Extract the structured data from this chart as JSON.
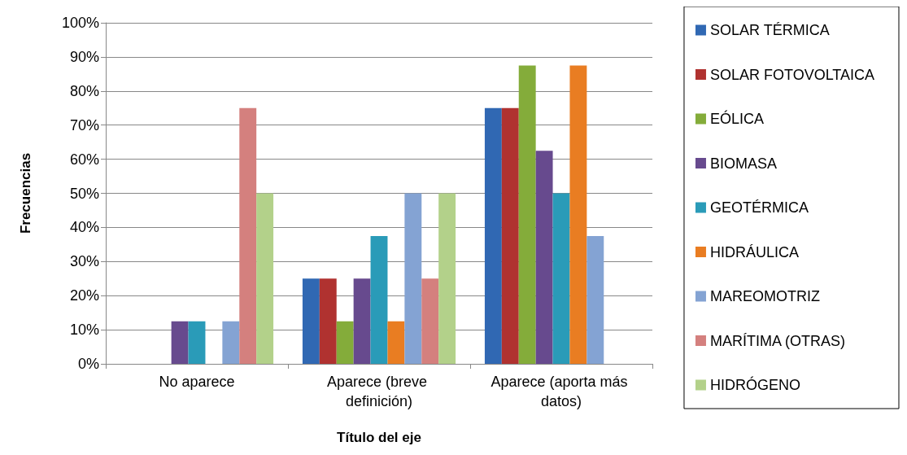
{
  "chart_data": {
    "type": "bar",
    "xlabel": "Título del eje",
    "ylabel": "Frecuencias",
    "categories": [
      "No aparece",
      "Aparece (breve definición)",
      "Aparece (aporta más datos)"
    ],
    "series": [
      {
        "name": "SOLAR TÉRMICA",
        "color": "#3068b3",
        "values": [
          0,
          25,
          75
        ]
      },
      {
        "name": "SOLAR FOTOVOLTAICA",
        "color": "#b03230",
        "values": [
          0,
          25,
          75
        ]
      },
      {
        "name": "EÓLICA",
        "color": "#84ac3a",
        "values": [
          0,
          12.5,
          87.5
        ]
      },
      {
        "name": "BIOMASA",
        "color": "#674a8e",
        "values": [
          12.5,
          25,
          62.5
        ]
      },
      {
        "name": "GEOTÉRMICA",
        "color": "#2a9bb8",
        "values": [
          12.5,
          37.5,
          50
        ]
      },
      {
        "name": "HIDRÁULICA",
        "color": "#e97d22",
        "values": [
          0,
          12.5,
          87.5
        ]
      },
      {
        "name": "MAREOMOTRIZ",
        "color": "#84a3d3",
        "values": [
          12.5,
          50,
          37.5
        ]
      },
      {
        "name": "MARÍTIMA (OTRAS)",
        "color": "#d4807e",
        "values": [
          75,
          25,
          0
        ]
      },
      {
        "name": "HIDRÓGENO",
        "color": "#b3d18a",
        "values": [
          50,
          50,
          0
        ]
      }
    ],
    "ylim": [
      0,
      100
    ],
    "yticks": [
      {
        "value": 0,
        "label": "0%"
      },
      {
        "value": 10,
        "label": "10%"
      },
      {
        "value": 20,
        "label": "20%"
      },
      {
        "value": 30,
        "label": "30%"
      },
      {
        "value": 40,
        "label": "40%"
      },
      {
        "value": 50,
        "label": "50%"
      },
      {
        "value": 60,
        "label": "60%"
      },
      {
        "value": 70,
        "label": "70%"
      },
      {
        "value": 80,
        "label": "80%"
      },
      {
        "value": 90,
        "label": "90%"
      },
      {
        "value": 100,
        "label": "100%"
      }
    ],
    "grid": "y",
    "legend": "right"
  }
}
